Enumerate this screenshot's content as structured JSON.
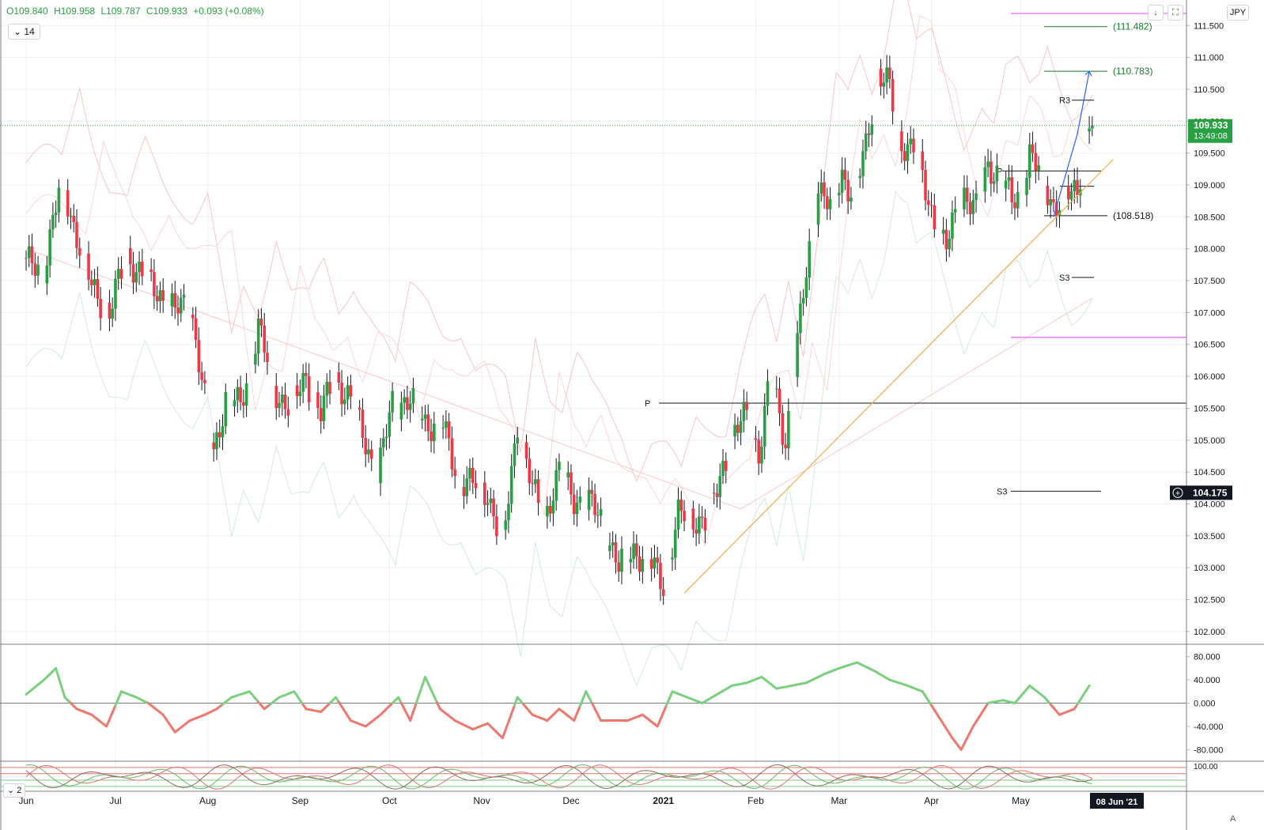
{
  "header": {
    "open": "O109.840",
    "high": "H109.958",
    "low": "L109.787",
    "close": "C109.933",
    "change": "+0.093 (+0.08%)",
    "period": "14",
    "currency": "JPY",
    "osc2_period": "2",
    "scale_mode": "A"
  },
  "colors": {
    "up": "#26a041",
    "down": "#f23645",
    "current_price_bg": "#26a041",
    "trendline": "#f7a948",
    "projection": "#2962ff",
    "magenta_level": "#e040fb",
    "cci_up": "#7bd07f",
    "cci_down": "#f0776d"
  },
  "chart_data": {
    "type": "candlestick",
    "y_ticks": [
      "111.500",
      "111.000",
      "110.500",
      "110.000",
      "109.500",
      "109.000",
      "108.500",
      "108.000",
      "107.500",
      "107.000",
      "106.500",
      "106.000",
      "105.500",
      "105.000",
      "104.500",
      "104.000",
      "103.500",
      "103.000",
      "102.500",
      "102.000"
    ],
    "ylim": [
      101.8,
      111.9
    ],
    "x_labels": [
      "Jun",
      "Jul",
      "Aug",
      "Sep",
      "Oct",
      "Nov",
      "Dec",
      "2021",
      "Feb",
      "Mar",
      "Apr",
      "May"
    ],
    "x_label_days": [
      0,
      30,
      61,
      92,
      122,
      153,
      183,
      214,
      245,
      273,
      304,
      334
    ],
    "last_day": 373,
    "current_price": "109.933",
    "countdown": "13:49:08",
    "crosshair_price": "104.175",
    "crosshair_date": "08 Jun '21",
    "close_anchors": [
      [
        0,
        107.75
      ],
      [
        6,
        107.7
      ],
      [
        12,
        109.1
      ],
      [
        17,
        108.2
      ],
      [
        22,
        107.4
      ],
      [
        28,
        107.0
      ],
      [
        34,
        107.9
      ],
      [
        40,
        107.5
      ],
      [
        45,
        107.3
      ],
      [
        50,
        107.0
      ],
      [
        55,
        107.2
      ],
      [
        60,
        105.6
      ],
      [
        63,
        104.8
      ],
      [
        67,
        105.7
      ],
      [
        72,
        105.5
      ],
      [
        78,
        106.8
      ],
      [
        83,
        105.8
      ],
      [
        89,
        105.5
      ],
      [
        94,
        106.0
      ],
      [
        99,
        105.4
      ],
      [
        104,
        106.0
      ],
      [
        109,
        105.6
      ],
      [
        114,
        105.0
      ],
      [
        118,
        104.4
      ],
      [
        123,
        105.6
      ],
      [
        129,
        105.6
      ],
      [
        134,
        105.3
      ],
      [
        140,
        105.2
      ],
      [
        145,
        104.4
      ],
      [
        150,
        104.3
      ],
      [
        155,
        104.2
      ],
      [
        160,
        103.3
      ],
      [
        165,
        105.3
      ],
      [
        170,
        104.2
      ],
      [
        174,
        103.8
      ],
      [
        179,
        104.5
      ],
      [
        184,
        104.1
      ],
      [
        189,
        104.0
      ],
      [
        194,
        103.7
      ],
      [
        199,
        103.0
      ],
      [
        204,
        103.3
      ],
      [
        209,
        103.1
      ],
      [
        214,
        102.75
      ],
      [
        219,
        103.8
      ],
      [
        224,
        103.8
      ],
      [
        229,
        103.7
      ],
      [
        234,
        104.6
      ],
      [
        238,
        105.1
      ],
      [
        242,
        105.4
      ],
      [
        246,
        104.8
      ],
      [
        250,
        106.0
      ],
      [
        255,
        105.0
      ],
      [
        259,
        106.5
      ],
      [
        263,
        108.0
      ],
      [
        266,
        109.0
      ],
      [
        270,
        108.6
      ],
      [
        274,
        109.2
      ],
      [
        278,
        108.8
      ],
      [
        282,
        109.6
      ],
      [
        286,
        110.8
      ],
      [
        290,
        110.5
      ],
      [
        293,
        109.7
      ],
      [
        298,
        109.6
      ],
      [
        302,
        108.9
      ],
      [
        306,
        108.3
      ],
      [
        309,
        108.0
      ],
      [
        312,
        108.5
      ],
      [
        315,
        108.9
      ],
      [
        319,
        108.6
      ],
      [
        323,
        109.3
      ],
      [
        327,
        109.2
      ],
      [
        331,
        108.7
      ],
      [
        334,
        108.9
      ],
      [
        337,
        109.5
      ],
      [
        341,
        109.1
      ],
      [
        345,
        108.7
      ],
      [
        349,
        108.8
      ],
      [
        353,
        108.9
      ],
      [
        356,
        109.84
      ],
      [
        358,
        109.933
      ]
    ],
    "magenta_lines": [
      111.69,
      106.61
    ],
    "pivot_long": {
      "label": "P",
      "value": 105.58
    },
    "pivot_short": {
      "label": "P",
      "value": 109.22
    },
    "s3_long": {
      "label": "S3",
      "value": 104.2
    },
    "r3": {
      "label": "R3",
      "value": 110.33
    },
    "s3_short": {
      "label": "S3",
      "value": 107.55
    },
    "p2_level": 108.98,
    "fib_levels": [
      {
        "label": "(111.482)",
        "value": 111.482
      },
      {
        "label": "(110.783)",
        "value": 110.783
      },
      {
        "label": "(108.518)",
        "value": 108.518
      }
    ],
    "trendline": [
      [
        221,
        102.6
      ],
      [
        365,
        109.4
      ]
    ],
    "projection": [
      [
        345,
        108.5
      ],
      [
        353,
        109.8
      ],
      [
        357,
        110.78
      ]
    ],
    "cci": {
      "ylim": [
        -100,
        100
      ],
      "ticks": [
        "80.000",
        "40.000",
        "0.000",
        "-40.000",
        "-80.000"
      ],
      "anchors": [
        [
          0,
          15
        ],
        [
          6,
          40
        ],
        [
          10,
          60
        ],
        [
          13,
          10
        ],
        [
          17,
          -10
        ],
        [
          22,
          -20
        ],
        [
          27,
          -40
        ],
        [
          32,
          20
        ],
        [
          37,
          10
        ],
        [
          41,
          0
        ],
        [
          46,
          -20
        ],
        [
          50,
          -50
        ],
        [
          55,
          -30
        ],
        [
          60,
          -20
        ],
        [
          64,
          -10
        ],
        [
          69,
          10
        ],
        [
          75,
          20
        ],
        [
          80,
          -10
        ],
        [
          85,
          10
        ],
        [
          90,
          20
        ],
        [
          94,
          -10
        ],
        [
          99,
          -15
        ],
        [
          104,
          10
        ],
        [
          109,
          -30
        ],
        [
          114,
          -40
        ],
        [
          119,
          -20
        ],
        [
          125,
          10
        ],
        [
          129,
          -30
        ],
        [
          134,
          45
        ],
        [
          139,
          -10
        ],
        [
          144,
          -30
        ],
        [
          150,
          -45
        ],
        [
          155,
          -35
        ],
        [
          160,
          -60
        ],
        [
          165,
          10
        ],
        [
          170,
          -20
        ],
        [
          175,
          -30
        ],
        [
          179,
          -10
        ],
        [
          184,
          -30
        ],
        [
          188,
          20
        ],
        [
          193,
          -30
        ],
        [
          197,
          -30
        ],
        [
          202,
          -30
        ],
        [
          207,
          -20
        ],
        [
          212,
          -40
        ],
        [
          217,
          20
        ],
        [
          222,
          10
        ],
        [
          227,
          0
        ],
        [
          232,
          15
        ],
        [
          237,
          30
        ],
        [
          242,
          35
        ],
        [
          247,
          45
        ],
        [
          252,
          25
        ],
        [
          257,
          30
        ],
        [
          262,
          35
        ],
        [
          268,
          50
        ],
        [
          273,
          60
        ],
        [
          279,
          70
        ],
        [
          285,
          55
        ],
        [
          290,
          40
        ],
        [
          296,
          30
        ],
        [
          301,
          20
        ],
        [
          306,
          -20
        ],
        [
          311,
          -60
        ],
        [
          314,
          -80
        ],
        [
          318,
          -40
        ],
        [
          323,
          0
        ],
        [
          328,
          5
        ],
        [
          332,
          0
        ],
        [
          337,
          30
        ],
        [
          342,
          10
        ],
        [
          347,
          -20
        ],
        [
          352,
          -10
        ],
        [
          357,
          30
        ]
      ]
    },
    "osc2": {
      "ylim": [
        0,
        105
      ],
      "ticks": [
        "100.00"
      ]
    }
  }
}
